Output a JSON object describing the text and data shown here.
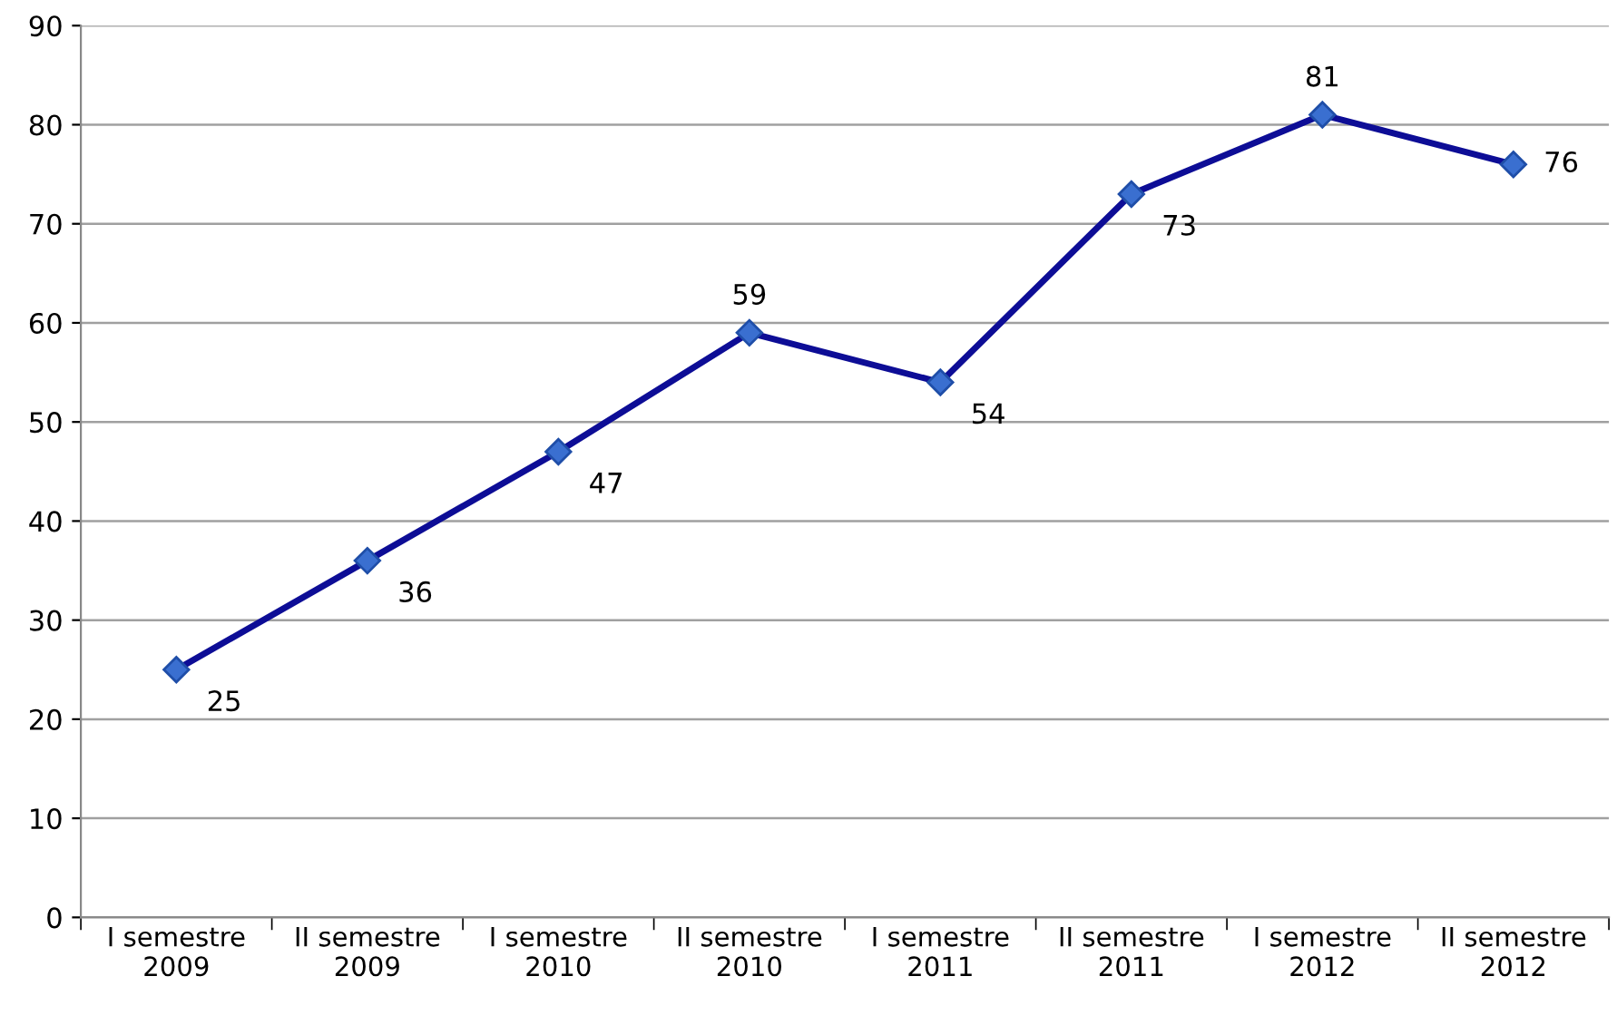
{
  "chart_data": {
    "type": "line",
    "categories": [
      "I semestre\n2009",
      "II semestre\n2009",
      "I semestre\n2010",
      "II semestre\n2010",
      "I semestre\n2011",
      "II semestre\n2011",
      "I semestre\n2012",
      "II semestre\n2012"
    ],
    "series": [
      {
        "color": "#0d0d96",
        "values": [
          25,
          36,
          47,
          59,
          54,
          73,
          81,
          76
        ]
      }
    ],
    "ylim": [
      0,
      90
    ],
    "yticks": [
      0,
      10,
      20,
      30,
      40,
      50,
      60,
      70,
      80,
      90
    ],
    "grid": "y",
    "marker": "diamond",
    "line_style": "solid",
    "data_labels": true,
    "legend": false
  }
}
